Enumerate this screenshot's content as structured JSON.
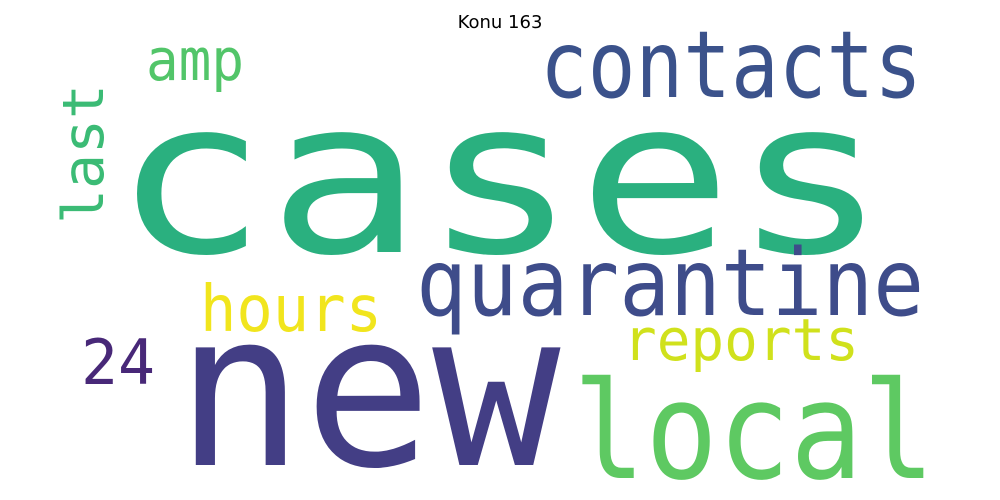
{
  "title": "Konu 163",
  "words": [
    {
      "key": "cases",
      "text": "cases",
      "color": "#2ab07f"
    },
    {
      "key": "new",
      "text": "new",
      "color": "#433e85"
    },
    {
      "key": "contacts",
      "text": "contacts",
      "color": "#3b528b"
    },
    {
      "key": "quarantine",
      "text": "quarantine",
      "color": "#3e4c8a"
    },
    {
      "key": "local",
      "text": "local",
      "color": "#5ec962"
    },
    {
      "key": "amp",
      "text": "amp",
      "color": "#52c569"
    },
    {
      "key": "last",
      "text": "last",
      "color": "#3bbb75"
    },
    {
      "key": "hours",
      "text": "hours",
      "color": "#f1e51d"
    },
    {
      "key": "reports",
      "text": "reports",
      "color": "#d0e11c"
    },
    {
      "key": "24",
      "text": "24",
      "color": "#482878"
    }
  ]
}
